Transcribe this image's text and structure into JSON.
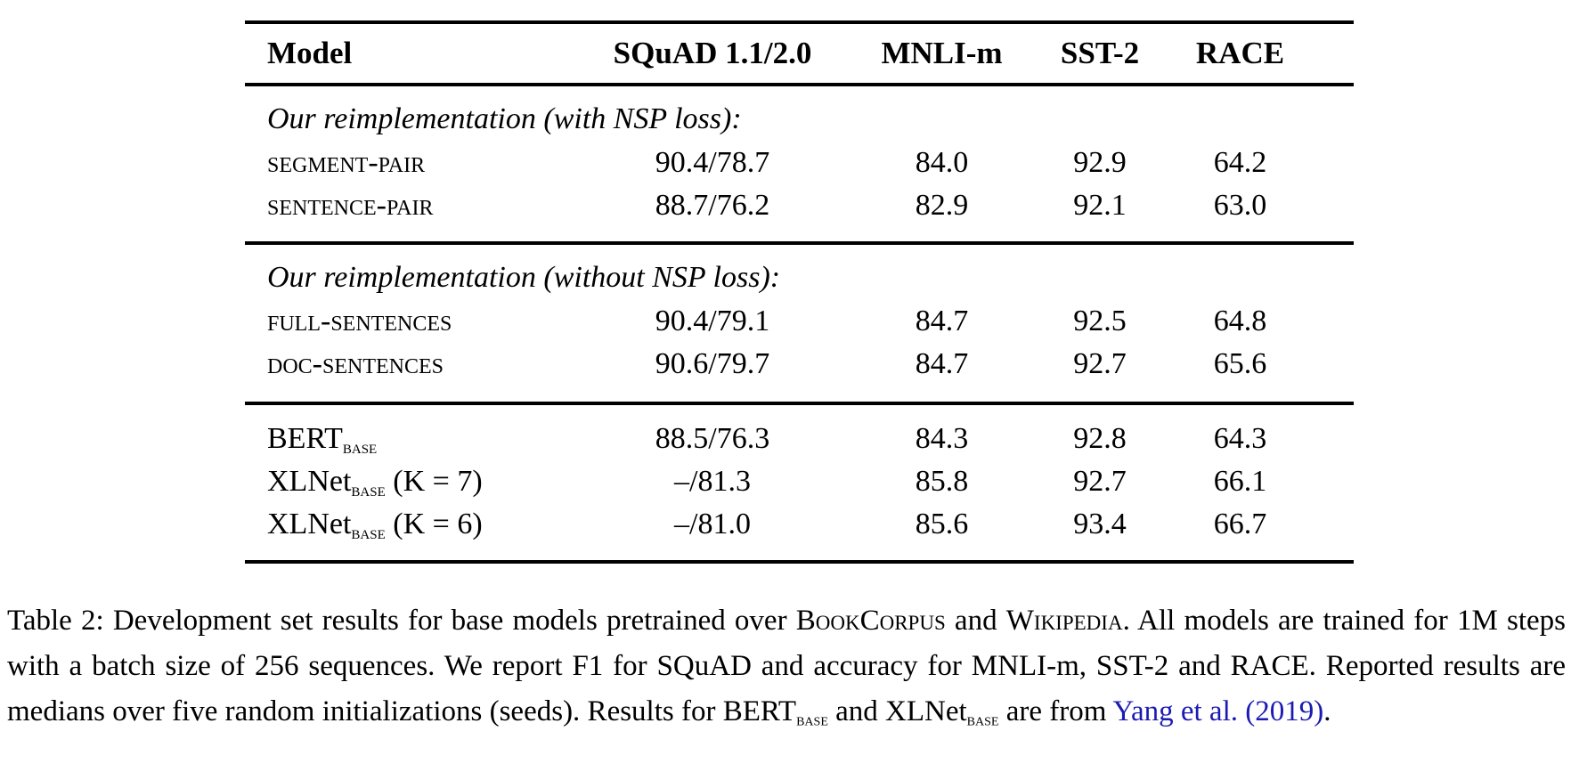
{
  "table": {
    "columns": [
      "Model",
      "SQuAD 1.1/2.0",
      "MNLI-m",
      "SST-2",
      "RACE"
    ],
    "sections": [
      {
        "header": "Our reimplementation (with NSP loss):",
        "rows": [
          {
            "model": "segment-pair",
            "squad": "90.4/78.7",
            "mnli_m": "84.0",
            "sst2": "92.9",
            "race": "64.2"
          },
          {
            "model": "sentence-pair",
            "squad": "88.7/76.2",
            "mnli_m": "82.9",
            "sst2": "92.1",
            "race": "63.0"
          }
        ]
      },
      {
        "header": "Our reimplementation (without NSP loss):",
        "rows": [
          {
            "model": "full-sentences",
            "squad": "90.4/79.1",
            "mnli_m": "84.7",
            "sst2": "92.5",
            "race": "64.8"
          },
          {
            "model": "doc-sentences",
            "squad": "90.6/79.7",
            "mnli_m": "84.7",
            "sst2": "92.7",
            "race": "65.6"
          }
        ]
      },
      {
        "rows": [
          {
            "model_main": "BERT",
            "model_sub": "base",
            "model_suffix": "",
            "squad": "88.5/76.3",
            "mnli_m": "84.3",
            "sst2": "92.8",
            "race": "64.3"
          },
          {
            "model_main": "XLNet",
            "model_sub": "base",
            "model_suffix": " (K = 7)",
            "squad": "–/81.3",
            "mnli_m": "85.8",
            "sst2": "92.7",
            "race": "66.1"
          },
          {
            "model_main": "XLNet",
            "model_sub": "base",
            "model_suffix": " (K = 6)",
            "squad": "–/81.0",
            "mnli_m": "85.6",
            "sst2": "93.4",
            "race": "66.7"
          }
        ]
      }
    ]
  },
  "caption": {
    "part1": "Table 2: Development set results for base models pretrained over ",
    "corpus1": "BookCorpus",
    "and_word": " and ",
    "corpus2": "Wikipedia",
    "part2": ". All models are trained for 1M steps with a batch size of 256 sequences. We report F1 for SQuAD and accuracy for MNLI-m, SST-2 and RACE. Reported results are medians over five random initializations (seeds). Results for BERT",
    "sub1": "base",
    "part3": " and XLNet",
    "sub2": "base",
    "part4": " are from ",
    "citation": "Yang et al. (2019)",
    "part5": ".",
    "link_color": "#1b1bb3",
    "text_color": "#000000",
    "background_color": "#ffffff"
  }
}
